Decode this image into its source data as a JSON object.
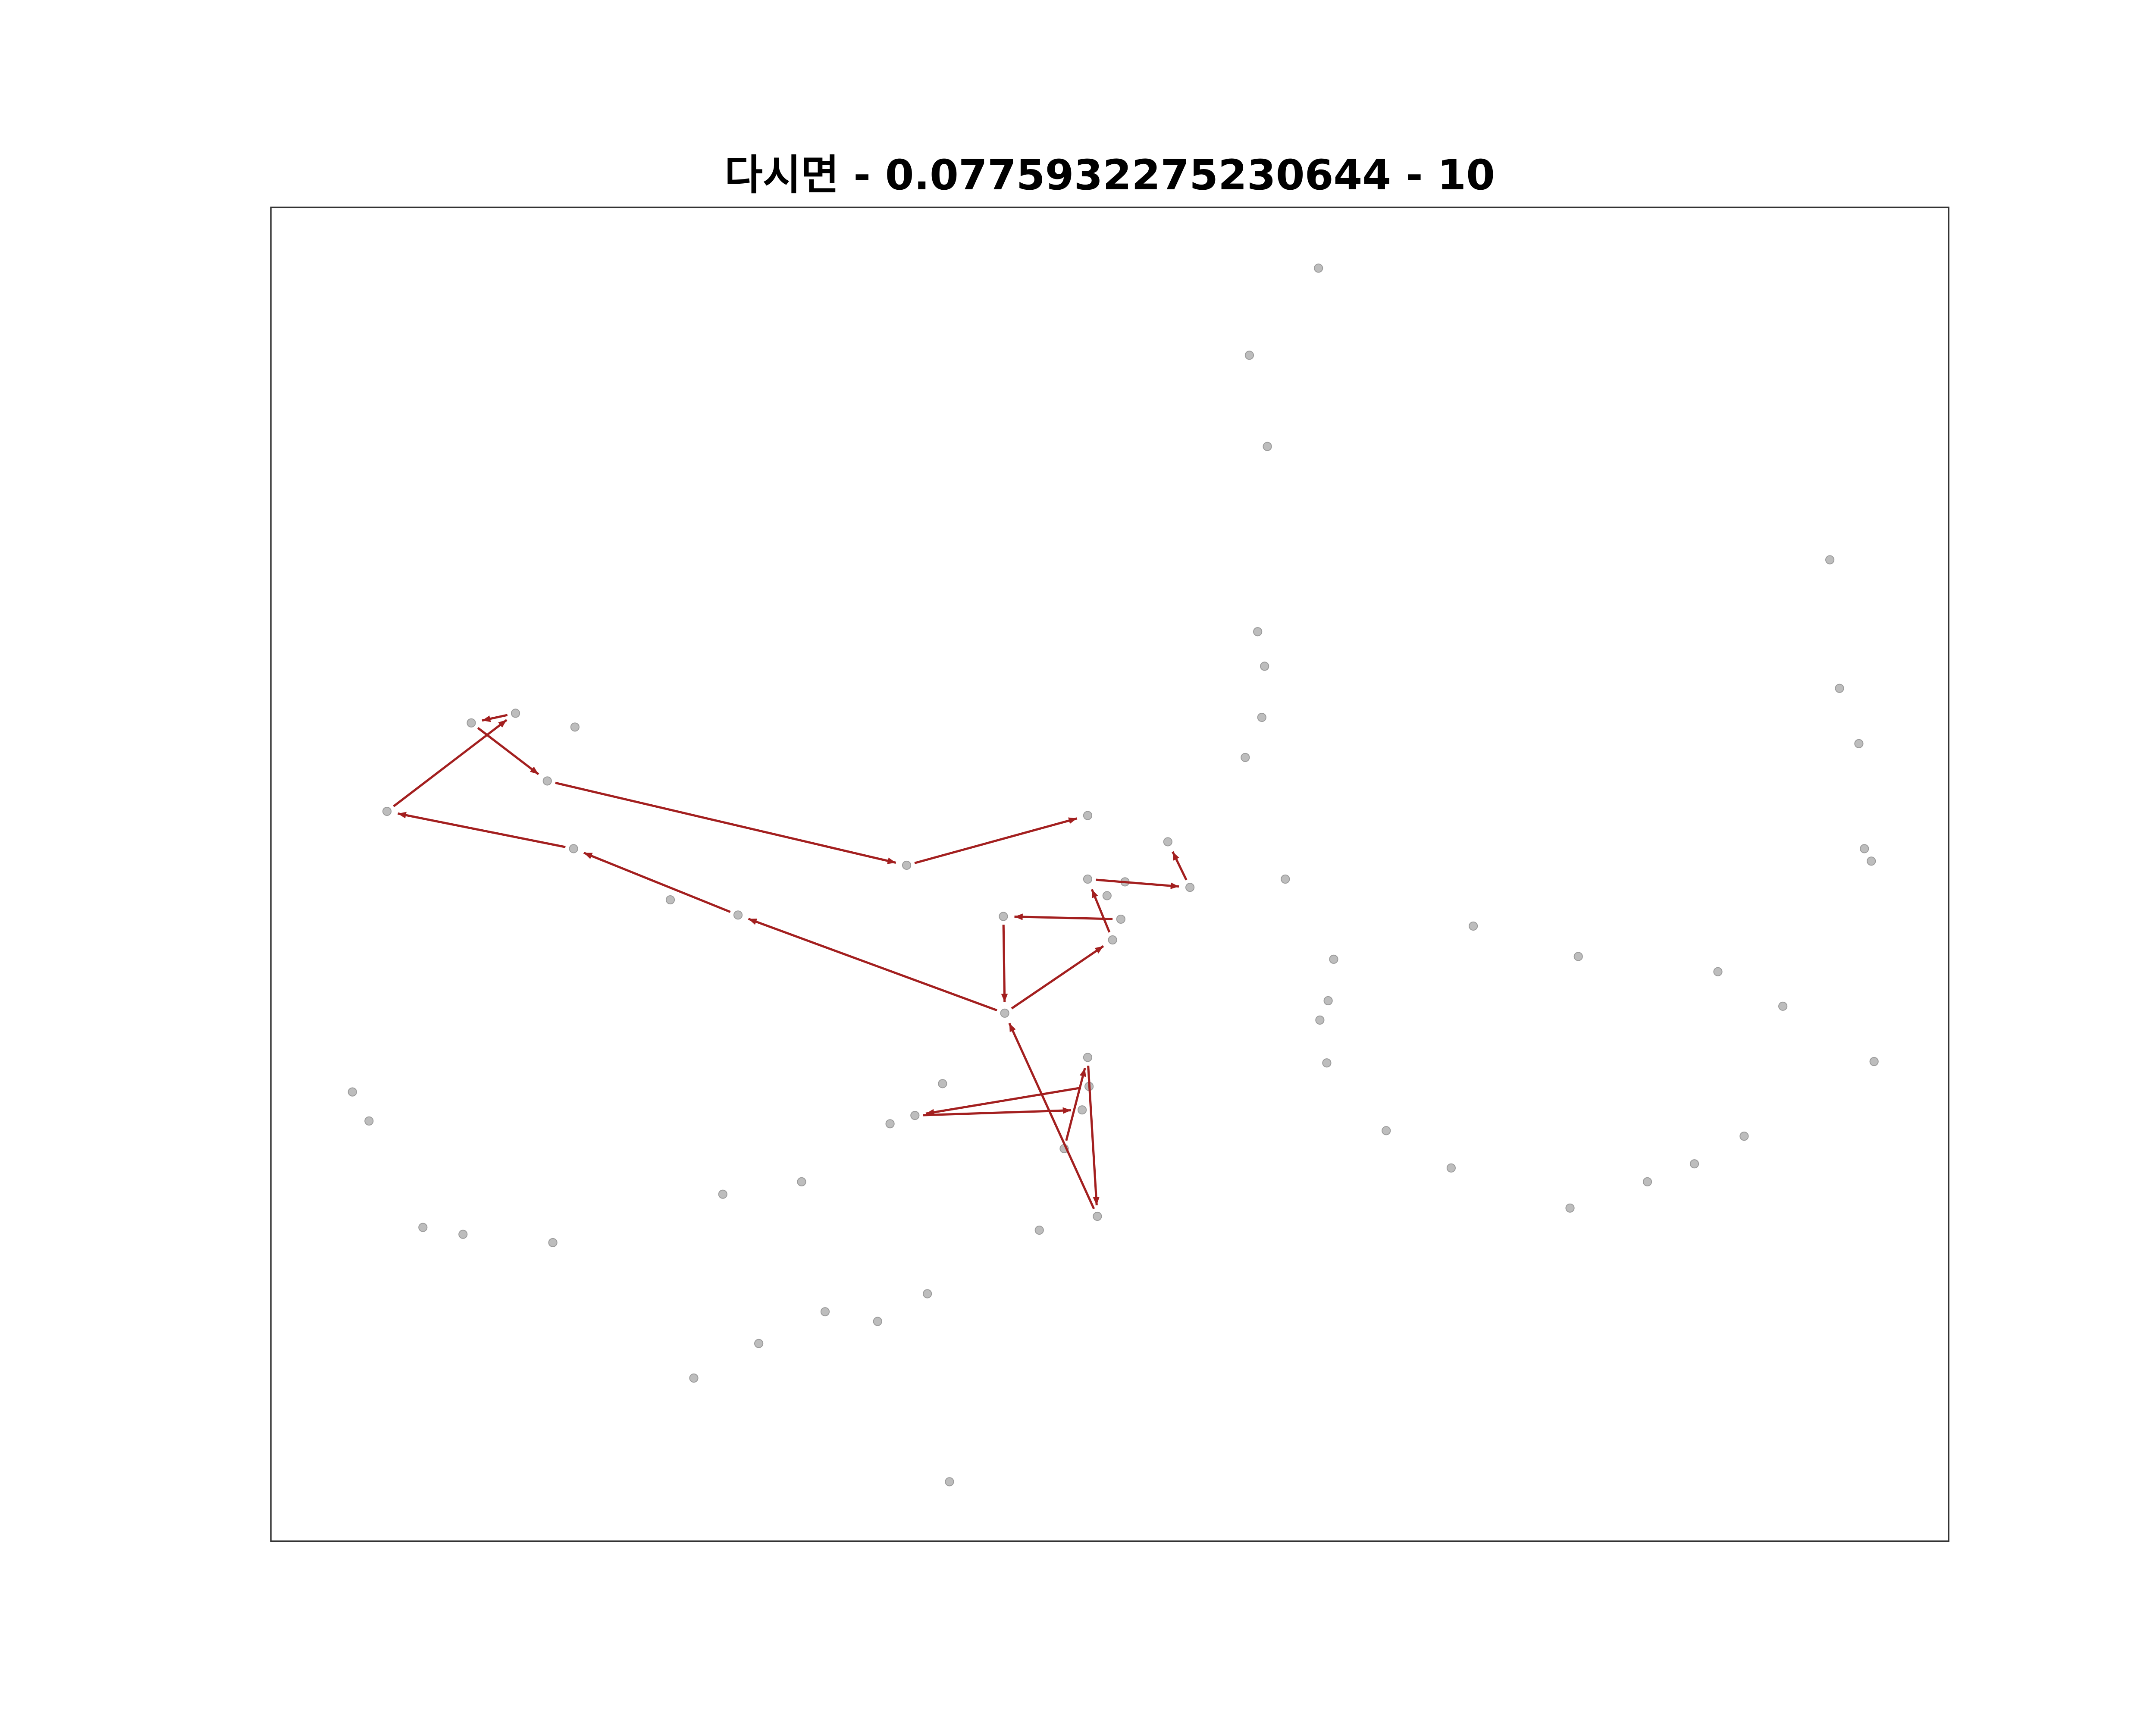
{
  "chart_data": {
    "type": "scatter",
    "title": "다시면 - 0.0775932275230644 - 10",
    "xlim": [
      196,
      1410
    ],
    "ylim": [
      1115,
      150
    ],
    "point_color": "#bdbdbd",
    "arrow_color": "#a31f1f",
    "x": [
      954,
      904,
      917,
      1324,
      910,
      915,
      1331,
      913,
      1345,
      901,
      341,
      373,
      416,
      396,
      280,
      787,
      415,
      845,
      1349,
      1354,
      656,
      787,
      814,
      930,
      861,
      801,
      485,
      534,
      726,
      811,
      1066,
      805,
      1142,
      965,
      1243,
      961,
      1290,
      727,
      955,
      960,
      1356,
      787,
      682,
      788,
      255,
      783,
      662,
      267,
      644,
      1003,
      1262,
      770,
      1226,
      1050,
      580,
      1192,
      523,
      1136,
      794,
      306,
      752,
      335,
      400,
      671,
      597,
      635,
      549,
      502,
      687
    ],
    "y": [
      194,
      257,
      323,
      405,
      457,
      482,
      498,
      519,
      538,
      548,
      523,
      516,
      526,
      565,
      587,
      590,
      614,
      609,
      614,
      623,
      626,
      636,
      638,
      636,
      642,
      648,
      651,
      662,
      663,
      665,
      670,
      680,
      692,
      694,
      703,
      724,
      728,
      733,
      738,
      769,
      768,
      765,
      784,
      786,
      790,
      803,
      807,
      811,
      813,
      818,
      822,
      831,
      842,
      845,
      855,
      855,
      864,
      874,
      880,
      888,
      890,
      893,
      899,
      936,
      949,
      956,
      972,
      997,
      1072
    ],
    "arrows": [
      {
        "from": [
          788,
          786
        ],
        "to": [
          662,
          807
        ]
      },
      {
        "from": [
          662,
          807
        ],
        "to": [
          783,
          803
        ]
      },
      {
        "from": [
          770,
          831
        ],
        "to": [
          787,
          765
        ]
      },
      {
        "from": [
          787,
          765
        ],
        "to": [
          794,
          880
        ]
      },
      {
        "from": [
          794,
          880
        ],
        "to": [
          727,
          733
        ]
      },
      {
        "from": [
          727,
          733
        ],
        "to": [
          534,
          662
        ]
      },
      {
        "from": [
          534,
          662
        ],
        "to": [
          415,
          614
        ]
      },
      {
        "from": [
          415,
          614
        ],
        "to": [
          280,
          587
        ]
      },
      {
        "from": [
          280,
          587
        ],
        "to": [
          373,
          516
        ]
      },
      {
        "from": [
          373,
          516
        ],
        "to": [
          341,
          523
        ]
      },
      {
        "from": [
          341,
          523
        ],
        "to": [
          396,
          565
        ]
      },
      {
        "from": [
          396,
          565
        ],
        "to": [
          656,
          626
        ]
      },
      {
        "from": [
          656,
          626
        ],
        "to": [
          787,
          590
        ]
      },
      {
        "from": [
          727,
          733
        ],
        "to": [
          805,
          680
        ]
      },
      {
        "from": [
          805,
          680
        ],
        "to": [
          787,
          636
        ]
      },
      {
        "from": [
          787,
          636
        ],
        "to": [
          861,
          642
        ]
      },
      {
        "from": [
          861,
          642
        ],
        "to": [
          845,
          609
        ]
      },
      {
        "from": [
          811,
          665
        ],
        "to": [
          726,
          663
        ]
      },
      {
        "from": [
          726,
          663
        ],
        "to": [
          727,
          733
        ]
      }
    ]
  }
}
